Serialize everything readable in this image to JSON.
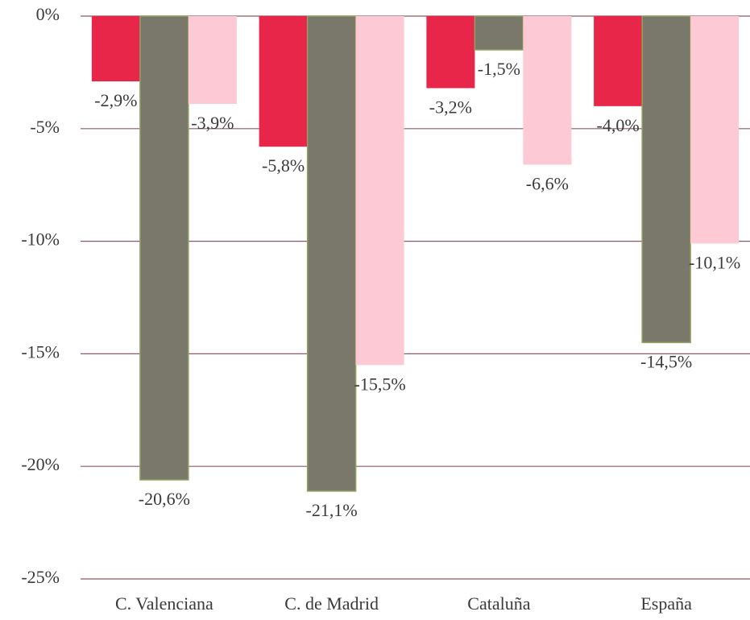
{
  "chart_data": {
    "type": "bar",
    "categories": [
      "C. Valenciana",
      "C. de Madrid",
      "Cataluña",
      "España"
    ],
    "series": [
      {
        "color": "#e8264a",
        "values": [
          -2.9,
          -5.8,
          -3.2,
          -4.0
        ],
        "value_labels": [
          "-2,9%",
          "-5,8%",
          "-3,2%",
          "-4,0%"
        ]
      },
      {
        "color": "#7a786a",
        "values": [
          -20.6,
          -21.1,
          -1.5,
          -14.5
        ],
        "value_labels": [
          "-20,6%",
          "-21,1%",
          "-1,5%",
          "-14,5%"
        ]
      },
      {
        "color": "#fdc9d4",
        "values": [
          -3.9,
          -15.5,
          -6.6,
          -10.1
        ],
        "value_labels": [
          "-3,9%",
          "-15,5%",
          "-6,6%",
          "-10,1%"
        ]
      }
    ],
    "ylim": [
      -25,
      0
    ],
    "yticks": [
      {
        "value": 0,
        "label": "0%"
      },
      {
        "value": -5,
        "label": "-5%"
      },
      {
        "value": -10,
        "label": "-10%"
      },
      {
        "value": -15,
        "label": "-15%"
      },
      {
        "value": -20,
        "label": "-20%"
      },
      {
        "value": -25,
        "label": "-25%"
      }
    ],
    "grid": true
  }
}
